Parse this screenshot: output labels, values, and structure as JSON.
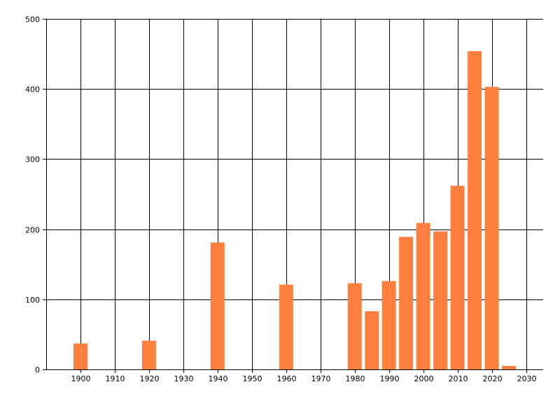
{
  "chart_data": {
    "type": "bar",
    "title": "",
    "xlabel": "",
    "ylabel": "",
    "xlim": [
      1890,
      2035
    ],
    "ylim": [
      0,
      500
    ],
    "grid": true,
    "x_ticks": [
      1900,
      1910,
      1920,
      1930,
      1940,
      1950,
      1960,
      1970,
      1980,
      1990,
      2000,
      2010,
      2020,
      2030
    ],
    "y_ticks": [
      0,
      100,
      200,
      300,
      400,
      500
    ],
    "bar_color": "#ff7f3f",
    "series": [
      {
        "x": [
          1900,
          1920,
          1940,
          1960,
          1980,
          1985,
          1990,
          1995,
          2000,
          2005,
          2010,
          2015,
          2020,
          2025
        ],
        "values": [
          37,
          41,
          181,
          121,
          123,
          83,
          126,
          189,
          209,
          197,
          262,
          454,
          403,
          5
        ]
      }
    ]
  }
}
